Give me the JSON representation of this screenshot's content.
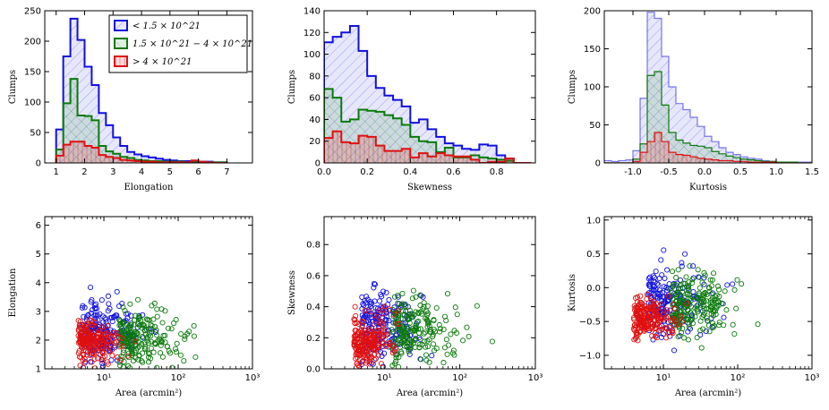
{
  "colors": {
    "blue": "#1010e0",
    "green": "#0a7a0a",
    "red": "#e01010"
  },
  "legend": {
    "low": "< 1.5 × 10^21",
    "mid": "1.5 × 10^21 − 4 × 10^21",
    "high": "> 4 × 10^21"
  },
  "chart_data": [
    {
      "type": "bar",
      "name": "hist-elongation",
      "xlabel": "Elongation",
      "ylabel": "Clumps",
      "xlim": [
        0.6,
        7.9
      ],
      "ylim": [
        0,
        250
      ],
      "xticks": [
        1,
        2,
        3,
        4,
        5,
        6,
        7
      ],
      "yticks": [
        0,
        50,
        100,
        150,
        200,
        250
      ],
      "bin_start": 1.0,
      "bin_width": 0.25,
      "series": [
        {
          "name": "< 1.5 × 10^21",
          "color": "blue",
          "values": [
            55,
            175,
            237,
            202,
            158,
            128,
            82,
            62,
            42,
            28,
            18,
            14,
            11,
            9,
            7,
            5,
            4,
            3,
            3,
            2,
            2,
            2,
            1,
            1
          ]
        },
        {
          "name": "1.5 × 10^21 − 4 × 10^21",
          "color": "green",
          "values": [
            22,
            98,
            138,
            78,
            77,
            70,
            28,
            19,
            15,
            10,
            8,
            5,
            4,
            3,
            3,
            2,
            2,
            2,
            1,
            1,
            2,
            1,
            1,
            1
          ]
        },
        {
          "name": "> 4 × 10^21",
          "color": "red",
          "values": [
            12,
            30,
            35,
            35,
            28,
            25,
            13,
            10,
            8,
            5,
            4,
            3,
            2,
            2,
            1,
            1,
            1,
            1,
            1,
            4,
            2,
            1,
            0,
            0
          ]
        }
      ]
    },
    {
      "type": "bar",
      "name": "hist-skewness",
      "xlabel": "Skewness",
      "ylabel": "Clumps",
      "xlim": [
        0.0,
        0.98
      ],
      "ylim": [
        0,
        140
      ],
      "xticks": [
        0.0,
        0.2,
        0.4,
        0.6,
        0.8
      ],
      "yticks": [
        0,
        20,
        40,
        60,
        80,
        100,
        120,
        140
      ],
      "bin_start": 0.0,
      "bin_width": 0.04,
      "series": [
        {
          "name": "< 1.5 × 10^21",
          "color": "blue",
          "values": [
            111,
            116,
            120,
            126,
            103,
            80,
            69,
            62,
            58,
            52,
            37,
            40,
            31,
            24,
            18,
            16,
            13,
            12,
            17,
            16,
            7,
            4,
            0,
            0
          ]
        },
        {
          "name": "1.5 × 10^21 − 4 × 10^21",
          "color": "green",
          "values": [
            68,
            60,
            38,
            40,
            49,
            48,
            47,
            44,
            41,
            35,
            24,
            20,
            19,
            10,
            14,
            5,
            5,
            7,
            5,
            4,
            3,
            2,
            0,
            0
          ]
        },
        {
          "name": "> 4 × 10^21",
          "color": "red",
          "values": [
            23,
            29,
            19,
            18,
            25,
            24,
            16,
            11,
            11,
            13,
            5,
            9,
            6,
            9,
            7,
            6,
            6,
            3,
            0,
            1,
            1,
            4,
            0,
            0
          ]
        }
      ]
    },
    {
      "type": "bar",
      "name": "hist-kurtosis",
      "xlabel": "Kurtosis",
      "ylabel": "Clumps",
      "xlim": [
        -1.4,
        1.5
      ],
      "ylim": [
        0,
        200
      ],
      "xticks": [
        -1.0,
        -0.5,
        0.0,
        0.5,
        1.0,
        1.5
      ],
      "yticks": [
        0,
        50,
        100,
        150,
        200
      ],
      "bin_start": -1.4,
      "bin_width": 0.1,
      "series": [
        {
          "name": "< 1.5 × 10^21",
          "color": "blue",
          "values": [
            3,
            2,
            3,
            4,
            16,
            85,
            198,
            190,
            140,
            100,
            78,
            70,
            60,
            48,
            35,
            28,
            20,
            14,
            11,
            8,
            6,
            5,
            3,
            2,
            1,
            1,
            1,
            1,
            1
          ]
        },
        {
          "name": "1.5 × 10^21 − 4 × 10^21",
          "color": "green",
          "values": [
            0,
            0,
            0,
            0,
            5,
            25,
            115,
            120,
            76,
            40,
            30,
            26,
            23,
            22,
            20,
            15,
            12,
            9,
            7,
            5,
            4,
            3,
            2,
            2,
            1,
            1,
            1,
            0,
            0
          ]
        },
        {
          "name": "> 4 × 10^21",
          "color": "red",
          "values": [
            0,
            0,
            0,
            0,
            2,
            14,
            28,
            40,
            28,
            14,
            11,
            10,
            8,
            6,
            5,
            4,
            3,
            3,
            2,
            2,
            1,
            1,
            1,
            1,
            0,
            0,
            0,
            0,
            0
          ]
        }
      ]
    },
    {
      "type": "scatter",
      "name": "scatter-elongation",
      "xlabel": "Area (arcmin²)",
      "ylabel": "Elongation",
      "xscale": "log",
      "xlim": [
        1.6,
        1000
      ],
      "ylim": [
        1,
        6.3
      ],
      "xticks": [
        10,
        100,
        1000
      ],
      "xtick_labels": [
        "10¹",
        "10²",
        "10³"
      ],
      "yticks": [
        1,
        2,
        3,
        4,
        5,
        6
      ],
      "points_per_series": 200,
      "marker": "open circle",
      "series": [
        {
          "name": "< 1.5 × 10^21",
          "color": "blue",
          "x_log_center": 0.7,
          "x_log_spread": 0.5,
          "y_center": 2.3,
          "y_spread": 0.9
        },
        {
          "name": "1.5 × 10^21 − 4 × 10^21",
          "color": "green",
          "x_log_center": 1.2,
          "x_log_spread": 0.55,
          "y_center": 2.1,
          "y_spread": 0.8
        },
        {
          "name": "> 4 × 10^21",
          "color": "red",
          "x_log_center": 0.65,
          "x_log_spread": 0.35,
          "y_center": 2.0,
          "y_spread": 0.6
        }
      ]
    },
    {
      "type": "scatter",
      "name": "scatter-skewness",
      "xlabel": "Area (arcmin²)",
      "ylabel": "Skewness",
      "xscale": "log",
      "xlim": [
        1.6,
        1000
      ],
      "ylim": [
        0,
        0.98
      ],
      "xticks": [
        10,
        100,
        1000
      ],
      "xtick_labels": [
        "10¹",
        "10²",
        "10³"
      ],
      "yticks": [
        0.0,
        0.2,
        0.4,
        0.6,
        0.8
      ],
      "points_per_series": 200,
      "marker": "open circle",
      "series": [
        {
          "name": "< 1.5 × 10^21",
          "color": "blue",
          "x_log_center": 0.7,
          "x_log_spread": 0.5,
          "y_center": 0.28,
          "y_spread": 0.2
        },
        {
          "name": "1.5 × 10^21 − 4 × 10^21",
          "color": "green",
          "x_log_center": 1.1,
          "x_log_spread": 0.55,
          "y_center": 0.25,
          "y_spread": 0.18
        },
        {
          "name": "> 4 × 10^21",
          "color": "red",
          "x_log_center": 0.6,
          "x_log_spread": 0.35,
          "y_center": 0.18,
          "y_spread": 0.14
        }
      ]
    },
    {
      "type": "scatter",
      "name": "scatter-kurtosis",
      "xlabel": "Area (arcmin²)",
      "ylabel": "Kurtosis",
      "xscale": "log",
      "xlim": [
        1.6,
        1000
      ],
      "ylim": [
        -1.2,
        1.05
      ],
      "xticks": [
        10,
        100,
        1000
      ],
      "xtick_labels": [
        "10¹",
        "10²",
        "10³"
      ],
      "yticks": [
        -1.0,
        -0.5,
        0.0,
        0.5,
        1.0
      ],
      "points_per_series": 200,
      "marker": "open circle",
      "series": [
        {
          "name": "< 1.5 × 10^21",
          "color": "blue",
          "x_log_center": 0.8,
          "x_log_spread": 0.55,
          "y_center": -0.2,
          "y_spread": 0.45
        },
        {
          "name": "1.5 × 10^21 − 4 × 10^21",
          "color": "green",
          "x_log_center": 1.1,
          "x_log_spread": 0.55,
          "y_center": -0.25,
          "y_spread": 0.4
        },
        {
          "name": "> 4 × 10^21",
          "color": "red",
          "x_log_center": 0.6,
          "x_log_spread": 0.35,
          "y_center": -0.45,
          "y_spread": 0.25
        }
      ]
    }
  ]
}
